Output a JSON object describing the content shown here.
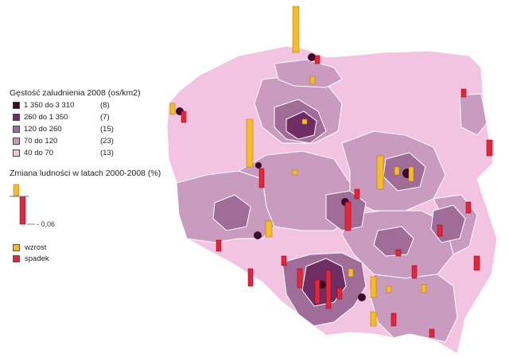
{
  "colors": {
    "density_1": "#3b0a2b",
    "density_2": "#6e2e63",
    "density_3": "#a06c98",
    "density_4": "#c89bbf",
    "density_5": "#f3c4e1",
    "increase": "#f5bb2a",
    "decrease": "#e5253a",
    "border": "#ffffff"
  },
  "legend": {
    "density_title": "Gęstość zaludnienia 2008 (os/km2)",
    "density_classes": [
      {
        "range": "1 350 do 3 310",
        "count": "(8)",
        "color_key": "density_1"
      },
      {
        "range": "260 do 1 350",
        "count": "(7)",
        "color_key": "density_2"
      },
      {
        "range": "120 do 260",
        "count": "(15)",
        "color_key": "density_3"
      },
      {
        "range": "70 do 120",
        "count": "(23)",
        "color_key": "density_4"
      },
      {
        "range": "40 do 70",
        "count": "(13)",
        "color_key": "density_5"
      }
    ],
    "change_title": "Zmiana ludności w latach 2000-2008 (%)",
    "scale_value": "- 0,06",
    "increase_label": "wzrost",
    "decrease_label": "spadek"
  }
}
